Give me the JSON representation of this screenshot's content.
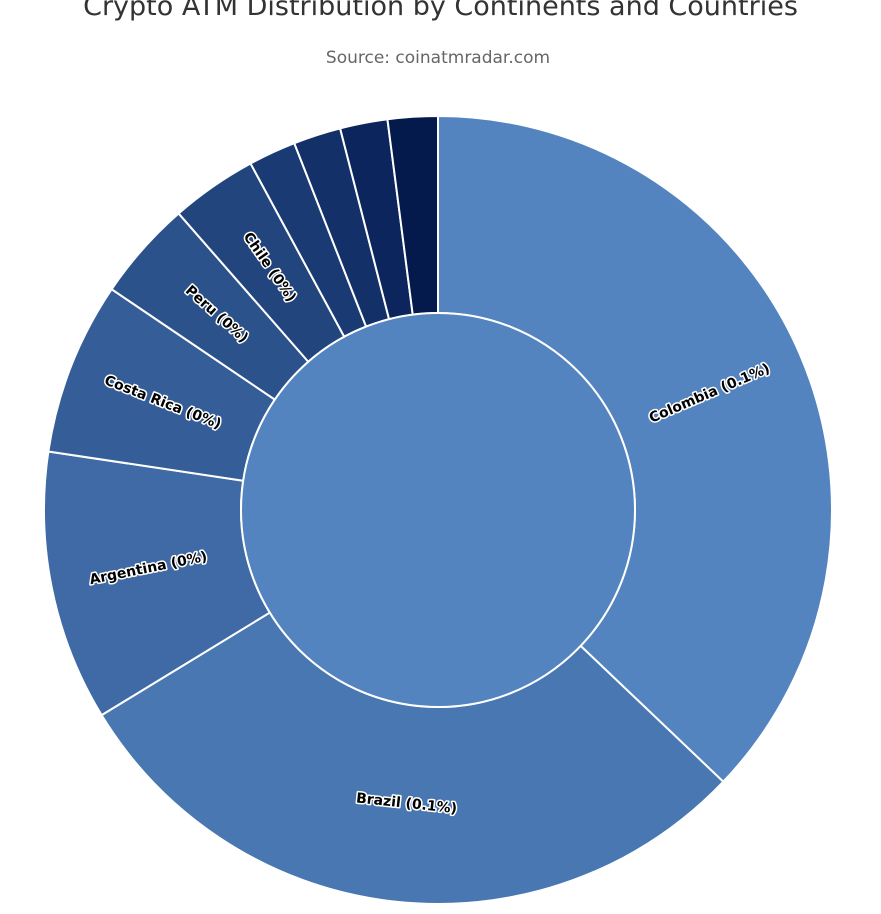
{
  "title": "Crypto ATM Distribution by Continents and Countries",
  "subtitle": "Source: coinatmradar.com",
  "chart_data": {
    "type": "sunburst",
    "title": "Crypto ATM Distribution by Continents and Countries",
    "subtitle": "Source: coinatmradar.com",
    "center": {
      "color": "#5384c0"
    },
    "slices": [
      {
        "label": "Colombia (0.1%)",
        "share": 0.3715,
        "color": "#5384c0",
        "show_label": true
      },
      {
        "label": "Brazil (0.1%)",
        "share": 0.292,
        "color": "#4877b2",
        "show_label": true
      },
      {
        "label": "Argentina (0%)",
        "share": 0.111,
        "color": "#3f6aa5",
        "show_label": true
      },
      {
        "label": "Costa Rica (0%)",
        "share": 0.071,
        "color": "#355e98",
        "show_label": true
      },
      {
        "label": "Peru (0%)",
        "share": 0.041,
        "color": "#2c528b",
        "show_label": true
      },
      {
        "label": "Chile (0%)",
        "share": 0.0355,
        "color": "#22457e",
        "show_label": true
      },
      {
        "label": "",
        "share": 0.0195,
        "color": "#1a3a73",
        "show_label": false
      },
      {
        "label": "",
        "share": 0.0195,
        "color": "#133068",
        "show_label": false
      },
      {
        "label": "",
        "share": 0.0195,
        "color": "#0c265d",
        "show_label": false
      },
      {
        "label": "",
        "share": 0.0205,
        "color": "#041a4d",
        "show_label": false
      }
    ]
  }
}
